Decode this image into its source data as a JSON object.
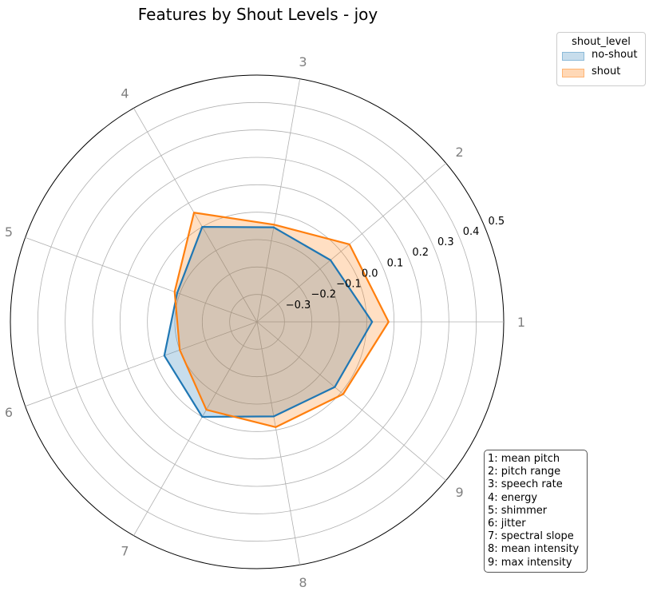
{
  "chart_data": {
    "type": "radar",
    "title": "Features by Shout Levels - joy",
    "axes_labels": [
      "1",
      "2",
      "3",
      "4",
      "5",
      "6",
      "7",
      "8",
      "9"
    ],
    "radial_ticks": [
      -0.3,
      -0.2,
      -0.1,
      0.0,
      0.1,
      0.2,
      0.3,
      0.4,
      0.5
    ],
    "radial_tick_labels": [
      "−0.3",
      "−0.2",
      "−0.1",
      "0.0",
      "0.1",
      "0.2",
      "0.3",
      "0.4",
      "0.5"
    ],
    "rlim": [
      -0.4,
      0.5
    ],
    "grid": true,
    "legend": {
      "title": "shout_level",
      "position": "top-right",
      "entries": [
        "no-shout",
        "shout"
      ]
    },
    "series": [
      {
        "name": "no-shout",
        "color": "#1f77b4",
        "fill": "#1f77b4",
        "values": [
          0.02,
          -0.05,
          -0.05,
          0.0,
          -0.09,
          -0.04,
          0.0,
          -0.05,
          -0.03
        ]
      },
      {
        "name": "shout",
        "color": "#ff7f0e",
        "fill": "#ff7f0e",
        "values": [
          0.08,
          0.04,
          -0.04,
          0.06,
          -0.08,
          -0.1,
          -0.03,
          -0.01,
          0.01
        ]
      }
    ],
    "feature_key": [
      "1: mean pitch",
      "2: pitch range",
      "3: speech rate",
      "4: energy",
      "5: shimmer",
      "6: jitter",
      "7: spectral slope",
      "8: mean intensity",
      "9: max intensity"
    ]
  }
}
